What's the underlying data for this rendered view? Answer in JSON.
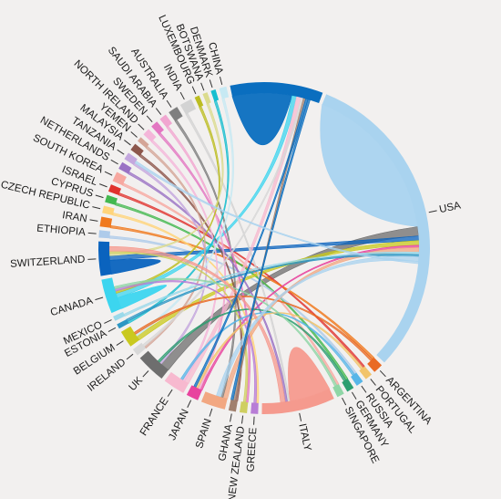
{
  "diagram": {
    "type": "chord",
    "background": "#f2f0ef",
    "groups": [
      {
        "name": "USA",
        "color": "#a9d3ef",
        "weight": 130
      },
      {
        "name": "ARGENTINA",
        "color": "#e96a23",
        "weight": 4
      },
      {
        "name": "PORTUGAL",
        "color": "#f2c46b",
        "weight": 3
      },
      {
        "name": "RUSSIA",
        "color": "#57b6e8",
        "weight": 3
      },
      {
        "name": "GERMANY",
        "color": "#2c9e70",
        "weight": 3
      },
      {
        "name": "SINGAPORE",
        "color": "#8fd6a6",
        "weight": 3
      },
      {
        "name": "ITALY",
        "color": "#f59a8e",
        "weight": 30
      },
      {
        "name": "GREECE",
        "color": "#b87dd6",
        "weight": 3
      },
      {
        "name": "NEW ZEALAND",
        "color": "#cfcf60",
        "weight": 3
      },
      {
        "name": "GHANA",
        "color": "#a1806e",
        "weight": 3
      },
      {
        "name": "SPAIN",
        "color": "#f2a781",
        "weight": 10
      },
      {
        "name": "JAPAN",
        "color": "#e8439e",
        "weight": 5
      },
      {
        "name": "FRANCE",
        "color": "#f7b9cf",
        "weight": 9
      },
      {
        "name": "UK",
        "color": "#6e6e6e",
        "weight": 12
      },
      {
        "name": "IRELAND",
        "color": "#d8d8d8",
        "weight": 3
      },
      {
        "name": "BELGIUM",
        "color": "#c9c91e",
        "weight": 7
      },
      {
        "name": "ESTONIA",
        "color": "#2d97c4",
        "weight": 2
      },
      {
        "name": "MEXICO",
        "color": "#9bd9ea",
        "weight": 2
      },
      {
        "name": "CANADA",
        "color": "#3cd5ef",
        "weight": 14
      },
      {
        "name": "SWITZERLAND",
        "color": "#0a63be",
        "weight": 14
      },
      {
        "name": "ETHIOPIA",
        "color": "#aecbea",
        "weight": 3
      },
      {
        "name": "IRAN",
        "color": "#f0791e",
        "weight": 4
      },
      {
        "name": "CZECH REPUBLIC",
        "color": "#ffd47a",
        "weight": 3
      },
      {
        "name": "CYPRUS",
        "color": "#43b84f",
        "weight": 3
      },
      {
        "name": "ISRAEL",
        "color": "#e0322d",
        "weight": 3
      },
      {
        "name": "SOUTH KOREA",
        "color": "#f7a8a0",
        "weight": 4
      },
      {
        "name": "NETHERLANDS",
        "color": "#9a72c4",
        "weight": 3
      },
      {
        "name": "TANZANIA",
        "color": "#c4a7de",
        "weight": 3
      },
      {
        "name": "MALAYSIA",
        "color": "#8c564b",
        "weight": 3
      },
      {
        "name": "YEMEN",
        "color": "#d4a597",
        "weight": 2
      },
      {
        "name": "NORTH IRELAND",
        "color": "#f4b6d9",
        "weight": 3
      },
      {
        "name": "SWEDEN",
        "color": "#e377c2",
        "weight": 3
      },
      {
        "name": "SAUDI ARABIA",
        "color": "#f1a6d0",
        "weight": 3
      },
      {
        "name": "AUSTRALIA",
        "color": "#7f7f7f",
        "weight": 4
      },
      {
        "name": "INDIA",
        "color": "#d3d3d3",
        "weight": 5
      },
      {
        "name": "LUXEMBOURG",
        "color": "#bcbd22",
        "weight": 2
      },
      {
        "name": "BOTSWANA",
        "color": "#dbdb8d",
        "weight": 2
      },
      {
        "name": "DENMARK",
        "color": "#17becf",
        "weight": 2
      },
      {
        "name": "CHINA",
        "color": "#c7e9f3",
        "weight": 3
      },
      {
        "name": "",
        "color": "#0a6ebf",
        "weight": 38
      }
    ],
    "ribbons": [
      {
        "from": "USA",
        "to": "USA",
        "color": "#a9d3ef",
        "value": 70
      },
      {
        "from": "",
        "to": "",
        "color": "#0a6ebf",
        "value": 26
      },
      {
        "from": "ITALY",
        "to": "ITALY",
        "color": "#f59a8e",
        "value": 18
      },
      {
        "from": "SWITZERLAND",
        "to": "SWITZERLAND",
        "color": "#0a63be",
        "value": 6
      },
      {
        "from": "CANADA",
        "to": "CANADA",
        "color": "#3cd5ef",
        "value": 5
      },
      {
        "from": "UK",
        "to": "USA",
        "color": "#6e6e6e",
        "value": 4
      },
      {
        "from": "ISRAEL",
        "to": "PORTUGAL",
        "color": "#e0322d",
        "value": 1
      },
      {
        "from": "IRAN",
        "to": "ARGENTINA",
        "color": "#f0791e",
        "value": 1
      },
      {
        "from": "SOUTH KOREA",
        "to": "SINGAPORE",
        "color": "#f7a8a0",
        "value": 1
      },
      {
        "from": "CYPRUS",
        "to": "GERMANY",
        "color": "#43b84f",
        "value": 1
      },
      {
        "from": "ETHIOPIA",
        "to": "RUSSIA",
        "color": "#aecbea",
        "value": 1
      },
      {
        "from": "CZECH REPUBLIC",
        "to": "GREECE",
        "color": "#ffd47a",
        "value": 1
      },
      {
        "from": "SWITZERLAND",
        "to": "USA",
        "color": "#0a63be",
        "value": 2
      },
      {
        "from": "CANADA",
        "to": "",
        "color": "#3cd5ef",
        "value": 2
      },
      {
        "from": "BELGIUM",
        "to": "USA",
        "color": "#c9c91e",
        "value": 2
      },
      {
        "from": "JAPAN",
        "to": "USA",
        "color": "#e8439e",
        "value": 1
      },
      {
        "from": "FRANCE",
        "to": "",
        "color": "#f7b9cf",
        "value": 2
      },
      {
        "from": "SPAIN",
        "to": "USA",
        "color": "#f2a781",
        "value": 2
      },
      {
        "from": "INDIA",
        "to": "ITALY",
        "color": "#d3d3d3",
        "value": 1
      },
      {
        "from": "AUSTRALIA",
        "to": "SPAIN",
        "color": "#7f7f7f",
        "value": 1
      },
      {
        "from": "MALAYSIA",
        "to": "GHANA",
        "color": "#8c564b",
        "value": 1
      },
      {
        "from": "SWEDEN",
        "to": "NEW ZEALAND",
        "color": "#e377c2",
        "value": 1
      },
      {
        "from": "NETHERLANDS",
        "to": "ITALY",
        "color": "#9a72c4",
        "value": 1
      },
      {
        "from": "TANZANIA",
        "to": "UK",
        "color": "#c4a7de",
        "value": 1
      },
      {
        "from": "NORTH IRELAND",
        "to": "FRANCE",
        "color": "#f4b6d9",
        "value": 1
      },
      {
        "from": "SAUDI ARABIA",
        "to": "JAPAN",
        "color": "#f1a6d0",
        "value": 1
      },
      {
        "from": "LUXEMBOURG",
        "to": "CANADA",
        "color": "#bcbd22",
        "value": 1
      },
      {
        "from": "BOTSWANA",
        "to": "SWITZERLAND",
        "color": "#dbdb8d",
        "value": 1
      },
      {
        "from": "DENMARK",
        "to": "ESTONIA",
        "color": "#17becf",
        "value": 1
      },
      {
        "from": "CHINA",
        "to": "BELGIUM",
        "color": "#c7e9f3",
        "value": 1
      },
      {
        "from": "YEMEN",
        "to": "IRELAND",
        "color": "#d4a597",
        "value": 1
      },
      {
        "from": "MEXICO",
        "to": "USA",
        "color": "#9bd9ea",
        "value": 1
      },
      {
        "from": "ESTONIA",
        "to": "USA",
        "color": "#2d97c4",
        "value": 1
      },
      {
        "from": "IRELAND",
        "to": "",
        "color": "#d8d8d8",
        "value": 1
      },
      {
        "from": "GREECE",
        "to": "CANADA",
        "color": "#b87dd6",
        "value": 1
      },
      {
        "from": "NEW ZEALAND",
        "to": "SWITZERLAND",
        "color": "#cfcf60",
        "value": 1
      },
      {
        "from": "GHANA",
        "to": "",
        "color": "#a1806e",
        "value": 1
      },
      {
        "from": "GERMANY",
        "to": "UK",
        "color": "#2c9e70",
        "value": 1
      },
      {
        "from": "RUSSIA",
        "to": "FRANCE",
        "color": "#57b6e8",
        "value": 1
      },
      {
        "from": "PORTUGAL",
        "to": "JAPAN",
        "color": "#f2c46b",
        "value": 1
      },
      {
        "from": "ARGENTINA",
        "to": "BELGIUM",
        "color": "#e96a23",
        "value": 1
      },
      {
        "from": "SINGAPORE",
        "to": "CANADA",
        "color": "#8fd6a6",
        "value": 1
      },
      {
        "from": "ITALY",
        "to": "SWITZERLAND",
        "color": "#f59a8e",
        "value": 2
      },
      {
        "from": "USA",
        "to": "SPAIN",
        "color": "#a9d3ef",
        "value": 2
      },
      {
        "from": "",
        "to": "JAPAN",
        "color": "#0a6ebf",
        "value": 1
      },
      {
        "from": "",
        "to": "GHANA",
        "color": "#0a6ebf",
        "value": 1
      },
      {
        "from": "USA",
        "to": "TANZANIA",
        "color": "#a9d3ef",
        "value": 1
      }
    ]
  }
}
